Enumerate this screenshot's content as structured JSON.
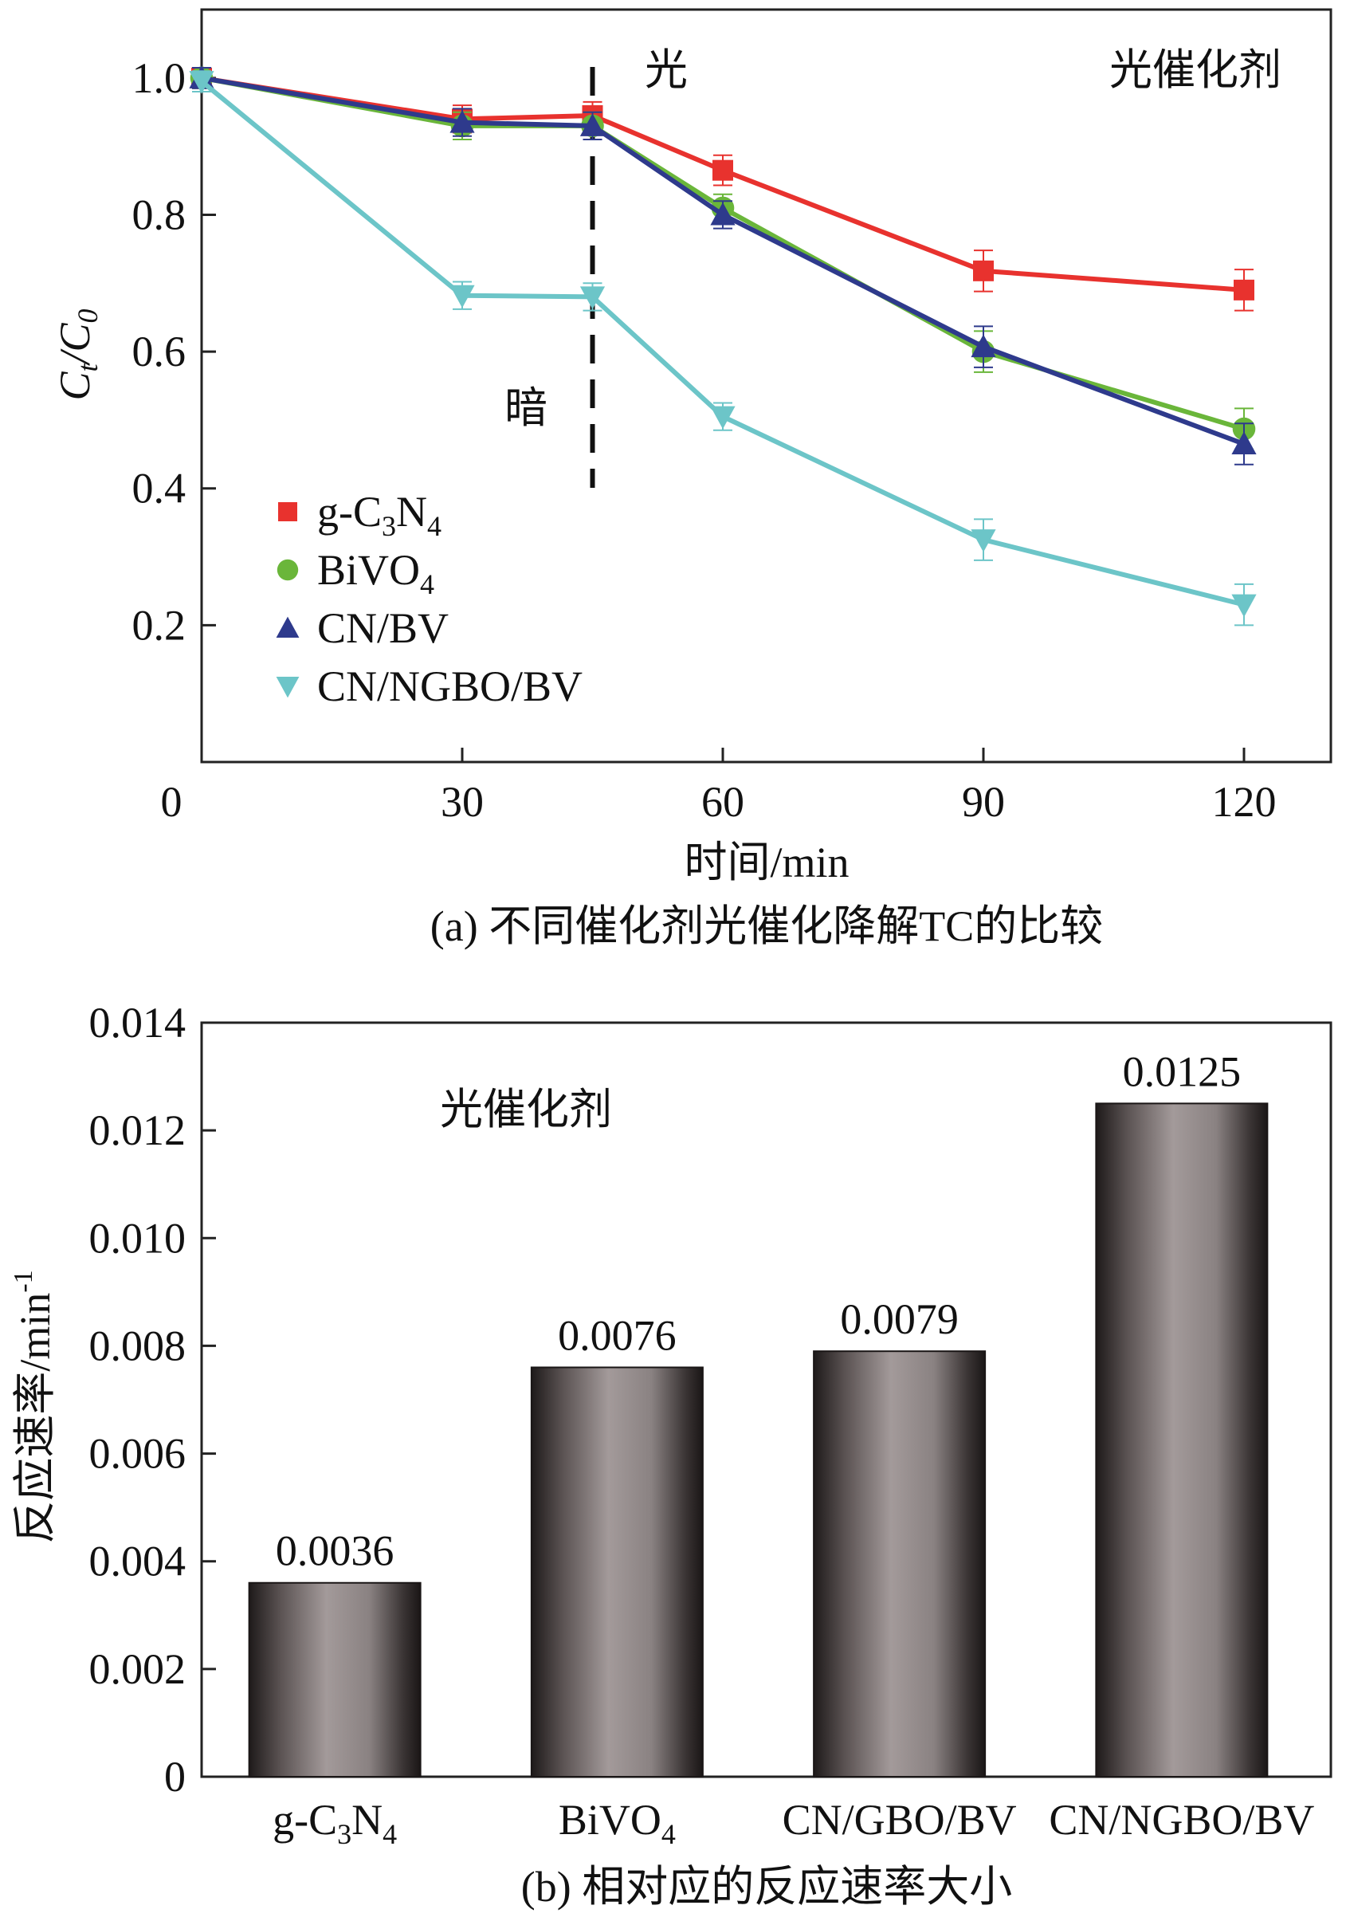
{
  "chart_data": [
    {
      "type": "line",
      "title": "",
      "caption": "(a) 不同催化剂光催化降解TC的比较",
      "xlabel": "时间/min",
      "ylabel": "Ct/C0",
      "xlim": [
        0,
        130
      ],
      "ylim": [
        0,
        1.1
      ],
      "xticks": [
        0,
        30,
        60,
        90,
        120
      ],
      "yticks": [
        0.2,
        0.4,
        0.6,
        0.8,
        1.0
      ],
      "ytick_labels": [
        "0.2",
        "0.4",
        "0.6",
        "0.8",
        "1.0"
      ],
      "x": [
        0,
        30,
        45,
        60,
        90,
        120
      ],
      "series": [
        {
          "name": "g-C3N4",
          "marker": "square",
          "color": "#e8322e",
          "values": [
            1.0,
            0.94,
            0.945,
            0.865,
            0.718,
            0.69
          ],
          "errors": [
            0.015,
            0.02,
            0.02,
            0.022,
            0.03,
            0.03
          ]
        },
        {
          "name": "BiVO4",
          "marker": "circle",
          "color": "#6ab63a",
          "values": [
            1.0,
            0.93,
            0.93,
            0.81,
            0.6,
            0.487
          ],
          "errors": [
            0.015,
            0.02,
            0.02,
            0.02,
            0.03,
            0.03
          ]
        },
        {
          "name": "CN/BV",
          "marker": "triangle-up",
          "color": "#2e3a8c",
          "values": [
            1.0,
            0.935,
            0.93,
            0.8,
            0.607,
            0.465
          ],
          "errors": [
            0.015,
            0.02,
            0.02,
            0.02,
            0.03,
            0.03
          ]
        },
        {
          "name": "CN/NGBO/BV",
          "marker": "triangle-down",
          "color": "#6cc5c8",
          "values": [
            0.995,
            0.682,
            0.68,
            0.505,
            0.325,
            0.23
          ],
          "errors": [
            0.015,
            0.02,
            0.02,
            0.02,
            0.03,
            0.03
          ]
        }
      ],
      "divider_x": 45,
      "annotations": {
        "light": "光",
        "dark": "暗",
        "label": "光催化剂"
      },
      "legend_position": "lower-left",
      "grid": false
    },
    {
      "type": "bar",
      "title": "",
      "caption": "(b) 相对应的反应速率大小",
      "xlabel": "",
      "ylabel": "反应速率/min",
      "ylabel_sup": "-1",
      "categories": [
        "g-C3N4",
        "BiVO4",
        "CN/GBO/BV",
        "CN/NGBO/BV"
      ],
      "values": [
        0.0036,
        0.0076,
        0.0079,
        0.0125
      ],
      "value_labels": [
        "0.0036",
        "0.0076",
        "0.0079",
        "0.0125"
      ],
      "ylim": [
        0,
        0.014
      ],
      "yticks": [
        0,
        0.002,
        0.004,
        0.006,
        0.008,
        0.01,
        0.012,
        0.014
      ],
      "ytick_labels": [
        "0",
        "0.002",
        "0.004",
        "0.006",
        "0.008",
        "0.010",
        "0.012",
        "0.014"
      ],
      "annotations": {
        "label": "光催化剂"
      },
      "grid": false
    }
  ]
}
